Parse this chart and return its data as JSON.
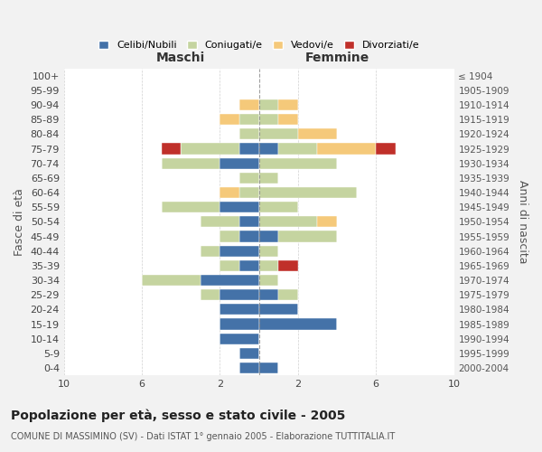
{
  "age_groups": [
    "100+",
    "95-99",
    "90-94",
    "85-89",
    "80-84",
    "75-79",
    "70-74",
    "65-69",
    "60-64",
    "55-59",
    "50-54",
    "45-49",
    "40-44",
    "35-39",
    "30-34",
    "25-29",
    "20-24",
    "15-19",
    "10-14",
    "5-9",
    "0-4"
  ],
  "birth_years": [
    "≤ 1904",
    "1905-1909",
    "1910-1914",
    "1915-1919",
    "1920-1924",
    "1925-1929",
    "1930-1934",
    "1935-1939",
    "1940-1944",
    "1945-1949",
    "1950-1954",
    "1955-1959",
    "1960-1964",
    "1965-1969",
    "1970-1974",
    "1975-1979",
    "1980-1984",
    "1985-1989",
    "1990-1994",
    "1995-1999",
    "2000-2004"
  ],
  "maschi": {
    "celibi": [
      0,
      0,
      0,
      0,
      0,
      1,
      2,
      0,
      0,
      2,
      1,
      1,
      2,
      1,
      3,
      2,
      2,
      2,
      2,
      1,
      1
    ],
    "coniugati": [
      0,
      0,
      0,
      1,
      1,
      3,
      3,
      1,
      1,
      3,
      2,
      1,
      1,
      1,
      3,
      1,
      0,
      0,
      0,
      0,
      0
    ],
    "vedovi": [
      0,
      0,
      1,
      1,
      0,
      0,
      0,
      0,
      1,
      0,
      0,
      0,
      0,
      0,
      0,
      0,
      0,
      0,
      0,
      0,
      0
    ],
    "divorziati": [
      0,
      0,
      0,
      0,
      0,
      1,
      0,
      0,
      0,
      0,
      0,
      0,
      0,
      0,
      0,
      0,
      0,
      0,
      0,
      0,
      0
    ]
  },
  "femmine": {
    "nubili": [
      0,
      0,
      0,
      0,
      0,
      1,
      0,
      0,
      0,
      0,
      0,
      1,
      0,
      0,
      0,
      1,
      2,
      4,
      0,
      0,
      1
    ],
    "coniugate": [
      0,
      0,
      1,
      1,
      2,
      2,
      4,
      1,
      5,
      2,
      3,
      3,
      1,
      1,
      1,
      1,
      0,
      0,
      0,
      0,
      0
    ],
    "vedove": [
      0,
      0,
      1,
      1,
      2,
      3,
      0,
      0,
      0,
      0,
      1,
      0,
      0,
      0,
      0,
      0,
      0,
      0,
      0,
      0,
      0
    ],
    "divorziate": [
      0,
      0,
      0,
      0,
      0,
      1,
      0,
      0,
      0,
      0,
      0,
      0,
      0,
      1,
      0,
      0,
      0,
      0,
      0,
      0,
      0
    ]
  },
  "colors": {
    "celibi_nubili": "#4472a8",
    "coniugati": "#c5d4a0",
    "vedovi": "#f5c97a",
    "divorziati": "#c0302a"
  },
  "title_main": "Popolazione per età, sesso e stato civile - 2005",
  "title_sub": "COMUNE DI MASSIMINO (SV) - Dati ISTAT 1° gennaio 2005 - Elaborazione TUTTITALIA.IT",
  "ylabel_left": "Fasce di età",
  "ylabel_right": "Anni di nascita",
  "label_maschi": "Maschi",
  "label_femmine": "Femmine",
  "legend_labels": [
    "Celibi/Nubili",
    "Coniugati/e",
    "Vedovi/e",
    "Divorziati/e"
  ],
  "bg_color": "#f2f2f2",
  "plot_bg": "#ffffff"
}
